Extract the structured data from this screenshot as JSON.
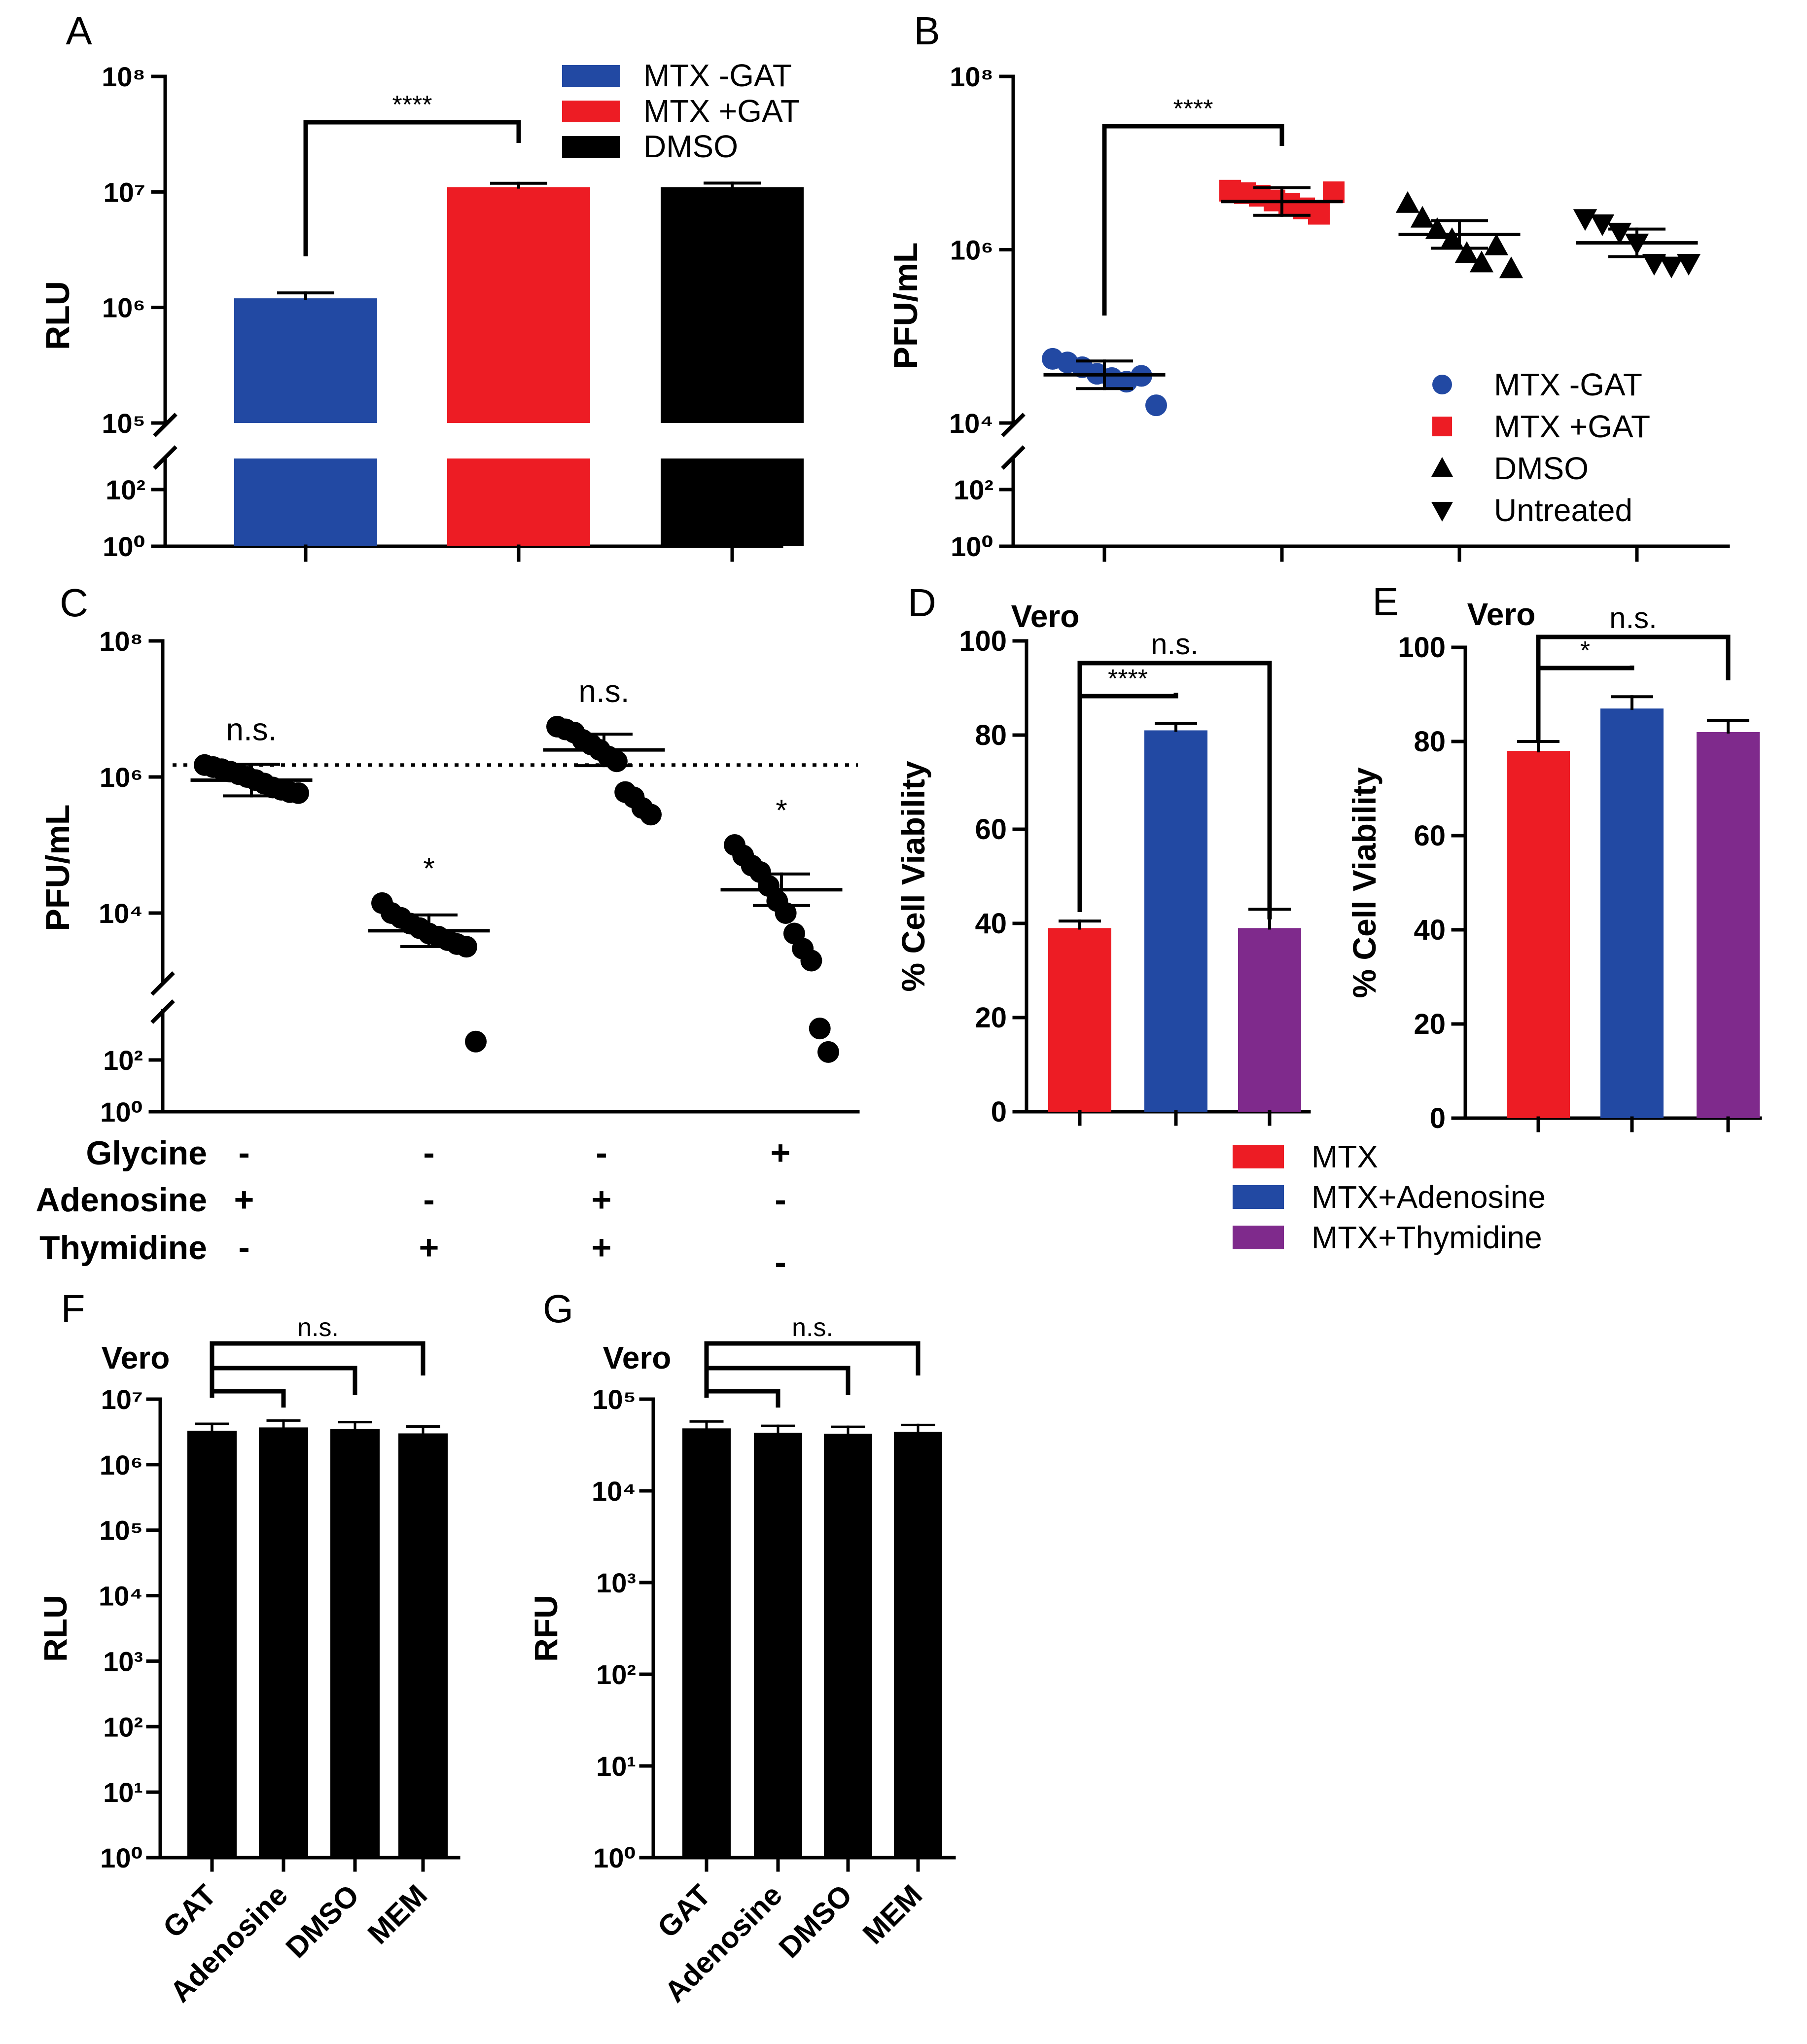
{
  "colors": {
    "blue": "#2249a3",
    "red": "#ed1c24",
    "black": "#000000",
    "purple": "#7f2a8c"
  },
  "chart_data": [
    {
      "id": "A",
      "panel_label": "A",
      "type": "bar",
      "yscale": "log (broken axis)",
      "ylabel": "RLU",
      "yticks_lower": [
        "10⁰",
        "10²"
      ],
      "yticks_upper": [
        "10⁵",
        "10⁶",
        "10⁷",
        "10⁸"
      ],
      "categories": [
        "MTX -GAT",
        "MTX +GAT",
        "DMSO"
      ],
      "values": [
        1200000,
        11000000,
        11000000
      ],
      "errors": [
        60000,
        200000,
        250000
      ],
      "bar_colors": [
        "blue",
        "red",
        "black"
      ],
      "legend": [
        "MTX -GAT",
        "MTX +GAT",
        "DMSO"
      ],
      "significance": [
        {
          "between": [
            0,
            1
          ],
          "label": "****"
        }
      ]
    },
    {
      "id": "B",
      "panel_label": "B",
      "type": "scatter",
      "yscale": "log (broken axis)",
      "ylabel": "PFU/mL",
      "yticks_lower": [
        "10⁰",
        "10²"
      ],
      "yticks_upper": [
        "10⁴",
        "10⁶",
        "10⁸"
      ],
      "series": [
        {
          "name": "MTX -GAT",
          "marker": "circle",
          "color": "blue",
          "mean": 36000,
          "values": [
            55000,
            50000,
            44000,
            37000,
            33000,
            30000,
            35000,
            16000
          ]
        },
        {
          "name": "MTX +GAT",
          "marker": "square",
          "color": "red",
          "mean": 3600000,
          "values": [
            4800000,
            4500000,
            4200000,
            3700000,
            3400000,
            3000000,
            2600000,
            4600000
          ]
        },
        {
          "name": "DMSO",
          "marker": "triangle-up",
          "color": "black",
          "mean": 1500000,
          "values": [
            3400000,
            2300000,
            1700000,
            1300000,
            900000,
            700000,
            1100000,
            600000
          ]
        },
        {
          "name": "Untreated",
          "marker": "triangle-down",
          "color": "black",
          "mean": 1200000,
          "values": [
            2300000,
            2000000,
            1600000,
            1200000,
            700000,
            650000,
            700000
          ]
        }
      ],
      "legend": [
        "MTX -GAT",
        "MTX +GAT",
        "DMSO",
        "Untreated"
      ],
      "significance": [
        {
          "between": [
            0,
            1
          ],
          "label": "****"
        }
      ]
    },
    {
      "id": "C",
      "panel_label": "C",
      "type": "scatter",
      "yscale": "log (broken axis)",
      "ylabel": "PFU/mL",
      "yticks_lower": [
        "10⁰",
        "10²"
      ],
      "yticks_upper": [
        "10⁴",
        "10⁶",
        "10⁸"
      ],
      "reference_line": 1500000,
      "series": [
        {
          "name": "Glycine - / Adenosine + / Thymidine -",
          "mean": 900000,
          "annotation": "n.s.",
          "values": [
            1500000,
            1400000,
            1300000,
            1200000,
            1100000,
            1000000,
            900000,
            800000,
            700000,
            650000,
            600000,
            580000
          ]
        },
        {
          "name": "Glycine - / Adenosine - / Thymidine +",
          "mean": 5500,
          "annotation": "*",
          "values": [
            14000,
            10000,
            8500,
            7000,
            6000,
            5000,
            4500,
            4000,
            3500,
            3200,
            300
          ]
        },
        {
          "name": "Glycine - / Adenosine + / Thymidine +",
          "mean": 2500000,
          "annotation": "n.s.",
          "values": [
            5500000,
            5000000,
            4500000,
            3500000,
            3000000,
            2500000,
            2000000,
            1700000,
            600000,
            500000,
            350000,
            280000
          ]
        },
        {
          "name": "Glycine + / Adenosine - / Thymidine -",
          "mean": 22000,
          "annotation": "*",
          "values": [
            100000,
            70000,
            50000,
            40000,
            25000,
            15000,
            10000,
            5000,
            3000,
            2000,
            500,
            200
          ]
        }
      ],
      "conditions": {
        "rows": [
          "Glycine",
          "Adenosine",
          "Thymidine"
        ],
        "signs": [
          [
            "-",
            "+",
            "-"
          ],
          [
            "-",
            "-",
            "+"
          ],
          [
            "-",
            "+",
            "+"
          ],
          [
            "+",
            "-",
            "-"
          ]
        ]
      }
    },
    {
      "id": "D",
      "panel_label": "D",
      "type": "bar",
      "title": "Vero",
      "ylabel": "% Cell Viability",
      "ylim": [
        0,
        100
      ],
      "yticks": [
        "0",
        "20",
        "40",
        "60",
        "80",
        "100"
      ],
      "categories": [
        "MTX",
        "MTX+Adenosine",
        "MTX+Thymidine"
      ],
      "values": [
        39,
        81,
        39
      ],
      "errors": [
        1.5,
        1.5,
        4
      ],
      "bar_colors": [
        "red",
        "blue",
        "purple"
      ],
      "significance": [
        {
          "between": [
            0,
            1
          ],
          "label": "****"
        },
        {
          "between": [
            0,
            2
          ],
          "label": "n.s."
        }
      ]
    },
    {
      "id": "E",
      "panel_label": "E",
      "type": "bar",
      "title": "Vero",
      "ylabel": "% Cell Viability",
      "ylim": [
        0,
        100
      ],
      "yticks": [
        "0",
        "20",
        "40",
        "60",
        "80",
        "100"
      ],
      "categories": [
        "MTX",
        "MTX+Adenosine",
        "MTX+Thymidine"
      ],
      "values": [
        78,
        87,
        82
      ],
      "errors": [
        2,
        2.5,
        2.5
      ],
      "bar_colors": [
        "red",
        "blue",
        "purple"
      ],
      "significance": [
        {
          "between": [
            0,
            1
          ],
          "label": "*"
        },
        {
          "between": [
            0,
            2
          ],
          "label": "n.s."
        }
      ]
    },
    {
      "id": "F",
      "panel_label": "F",
      "type": "bar",
      "title": "Vero",
      "yscale": "log",
      "ylabel": "RLU",
      "ylim_exp": [
        0,
        7
      ],
      "yticks": [
        "10⁰",
        "10¹",
        "10²",
        "10³",
        "10⁴",
        "10⁵",
        "10⁶",
        "10⁷"
      ],
      "categories": [
        "GAT",
        "Adenosine",
        "DMSO",
        "MEM"
      ],
      "values": [
        3300000,
        3700000,
        3500000,
        3000000
      ],
      "bar_colors": [
        "black",
        "black",
        "black",
        "black"
      ],
      "significance": [
        {
          "between": [
            0,
            3
          ],
          "label": "n.s."
        }
      ]
    },
    {
      "id": "G",
      "panel_label": "G",
      "type": "bar",
      "title": "Vero",
      "yscale": "log",
      "ylabel": "RFU",
      "ylim_exp": [
        0,
        5
      ],
      "yticks": [
        "10⁰",
        "10¹",
        "10²",
        "10³",
        "10⁴",
        "10⁵"
      ],
      "categories": [
        "GAT",
        "Adenosine",
        "DMSO",
        "MEM"
      ],
      "values": [
        48000,
        43000,
        42000,
        44000
      ],
      "bar_colors": [
        "black",
        "black",
        "black",
        "black"
      ],
      "significance": [
        {
          "between": [
            0,
            3
          ],
          "label": "n.s."
        }
      ]
    }
  ],
  "legend_DE": {
    "entries": [
      {
        "label": "MTX",
        "color": "red"
      },
      {
        "label": "MTX+Adenosine",
        "color": "blue"
      },
      {
        "label": "MTX+Thymidine",
        "color": "purple"
      }
    ]
  }
}
